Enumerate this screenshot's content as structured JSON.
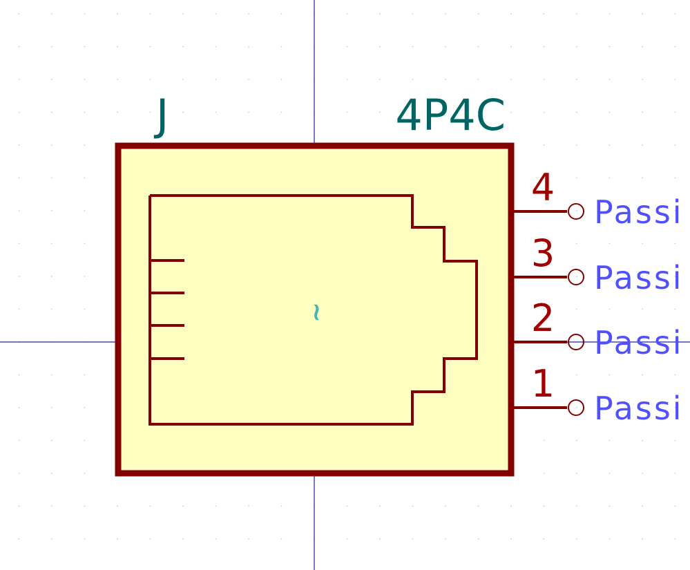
{
  "symbol": {
    "reference": "J",
    "value": "4P4C",
    "center_mark": "~"
  },
  "pins": [
    {
      "number": "4",
      "electrical_type": "Passi"
    },
    {
      "number": "3",
      "electrical_type": "Passi"
    },
    {
      "number": "2",
      "electrical_type": "Passi"
    },
    {
      "number": "1",
      "electrical_type": "Passi"
    }
  ],
  "colors": {
    "background": "#ffffff",
    "grid_dot": "#c8c8c8",
    "axis": "#2020a0",
    "body_outline": "#840000",
    "body_fill": "#ffffc2",
    "field_text": "#006464",
    "pin": "#840000",
    "pin_number": "#a00000",
    "pin_type": "#5050ff",
    "center_mark": "#48b4b4"
  }
}
